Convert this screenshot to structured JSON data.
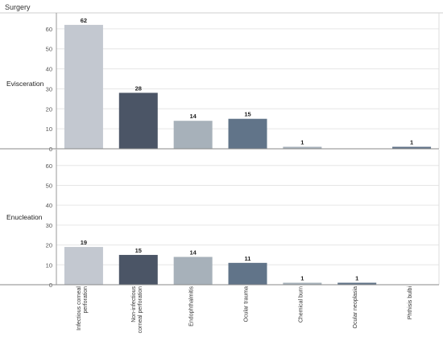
{
  "header": {
    "title": "Surgery"
  },
  "chart_data": [
    {
      "type": "bar",
      "facet": "Evisceration",
      "categories": [
        "Infectious corneal perforation",
        "Non-infectious corneal perforation",
        "Endophthalmitis",
        "Ocular trauma",
        "Chemical burn",
        "Ocular neoplasia",
        "Phthisis bulbi"
      ],
      "values": [
        62,
        28,
        14,
        15,
        1,
        0,
        1
      ],
      "data_labels": [
        "62",
        "28",
        "14",
        "15",
        "1",
        "",
        "1"
      ],
      "yticks": [
        0,
        10,
        20,
        30,
        40,
        50,
        60
      ],
      "ylim": [
        0,
        68
      ],
      "grid": true,
      "legend": "none"
    },
    {
      "type": "bar",
      "facet": "Enucleation",
      "categories": [
        "Infectious corneal perforation",
        "Non-infectious corneal perforation",
        "Endophthalmitis",
        "Ocular trauma",
        "Chemical burn",
        "Ocular neoplasia",
        "Phthisis bulbi"
      ],
      "values": [
        19,
        15,
        14,
        11,
        1,
        1,
        0
      ],
      "data_labels": [
        "19",
        "15",
        "14",
        "11",
        "1",
        "1",
        ""
      ],
      "yticks": [
        0,
        10,
        20,
        30,
        40,
        50,
        60
      ],
      "ylim": [
        0,
        68
      ],
      "grid": true,
      "legend": "none"
    }
  ],
  "x_tick_labels": [
    [
      "Infectious corneal",
      "perforation"
    ],
    [
      "Non-infectious",
      "corneal perforation"
    ],
    [
      "Endophthalmitis"
    ],
    [
      "Ocular trauma"
    ],
    [
      "Chemical burn"
    ],
    [
      "Ocular neoplasia"
    ],
    [
      "Phthisis bulbi"
    ]
  ],
  "colors": {
    "categories": [
      "#c3c8d0",
      "#4b5566",
      "#a7b1ba",
      "#617489",
      "#a7b1ba",
      "#617489",
      "#617489"
    ],
    "grid": "#e6e6e6",
    "axis": "#999999",
    "text": "#333333"
  }
}
